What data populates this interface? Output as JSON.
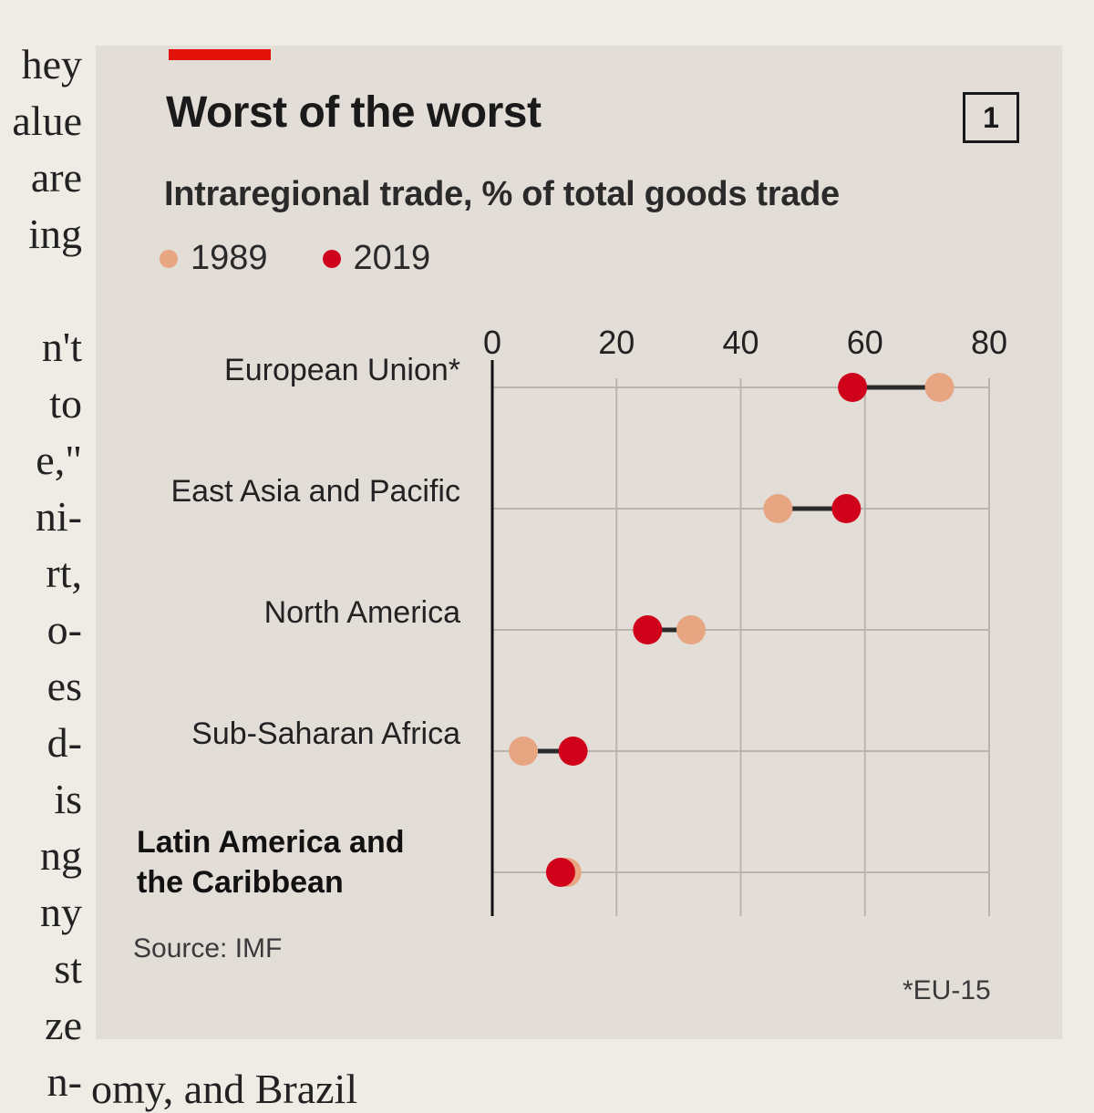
{
  "page_text": {
    "left_lines": [
      "hey",
      "alue",
      "are",
      "ing",
      "",
      "n't",
      "to",
      "e,\"",
      "ni-",
      "rt,",
      "o-",
      "es",
      "d-",
      "is",
      "ng",
      "ny",
      "st",
      "ze",
      "n-"
    ],
    "bottom_line": "omy, and Brazil"
  },
  "chart_header": {
    "title": "Worst of the worst",
    "badge": "1",
    "subtitle": "Intraregional trade, % of total goods trade",
    "source": "Source: IMF",
    "footnote": "*EU-15"
  },
  "colors": {
    "accent": "#e3120b",
    "y1989": "#e8a582",
    "y2019": "#d0021b",
    "connector": "#2a2a2a",
    "grid": "#b9b4ad",
    "panel": "#e2ddd6"
  },
  "chart_data": {
    "type": "scatter",
    "subtype": "dumbbell",
    "title": "Worst of the worst",
    "subtitle": "Intraregional trade, % of total goods trade",
    "categories": [
      "European Union*",
      "East Asia and Pacific",
      "North America",
      "Sub-Saharan Africa",
      "Latin America and the Caribbean"
    ],
    "highlighted_category": "Latin America and the Caribbean",
    "series": [
      {
        "name": "1989",
        "values": [
          72,
          46,
          32,
          5,
          12
        ]
      },
      {
        "name": "2019",
        "values": [
          58,
          57,
          25,
          13,
          11
        ]
      }
    ],
    "xlim": [
      0,
      80
    ],
    "xticks": [
      0,
      20,
      40,
      60,
      80
    ],
    "grid": true,
    "legend": "top-left",
    "source": "Source: IMF",
    "note": "*EU-15"
  }
}
